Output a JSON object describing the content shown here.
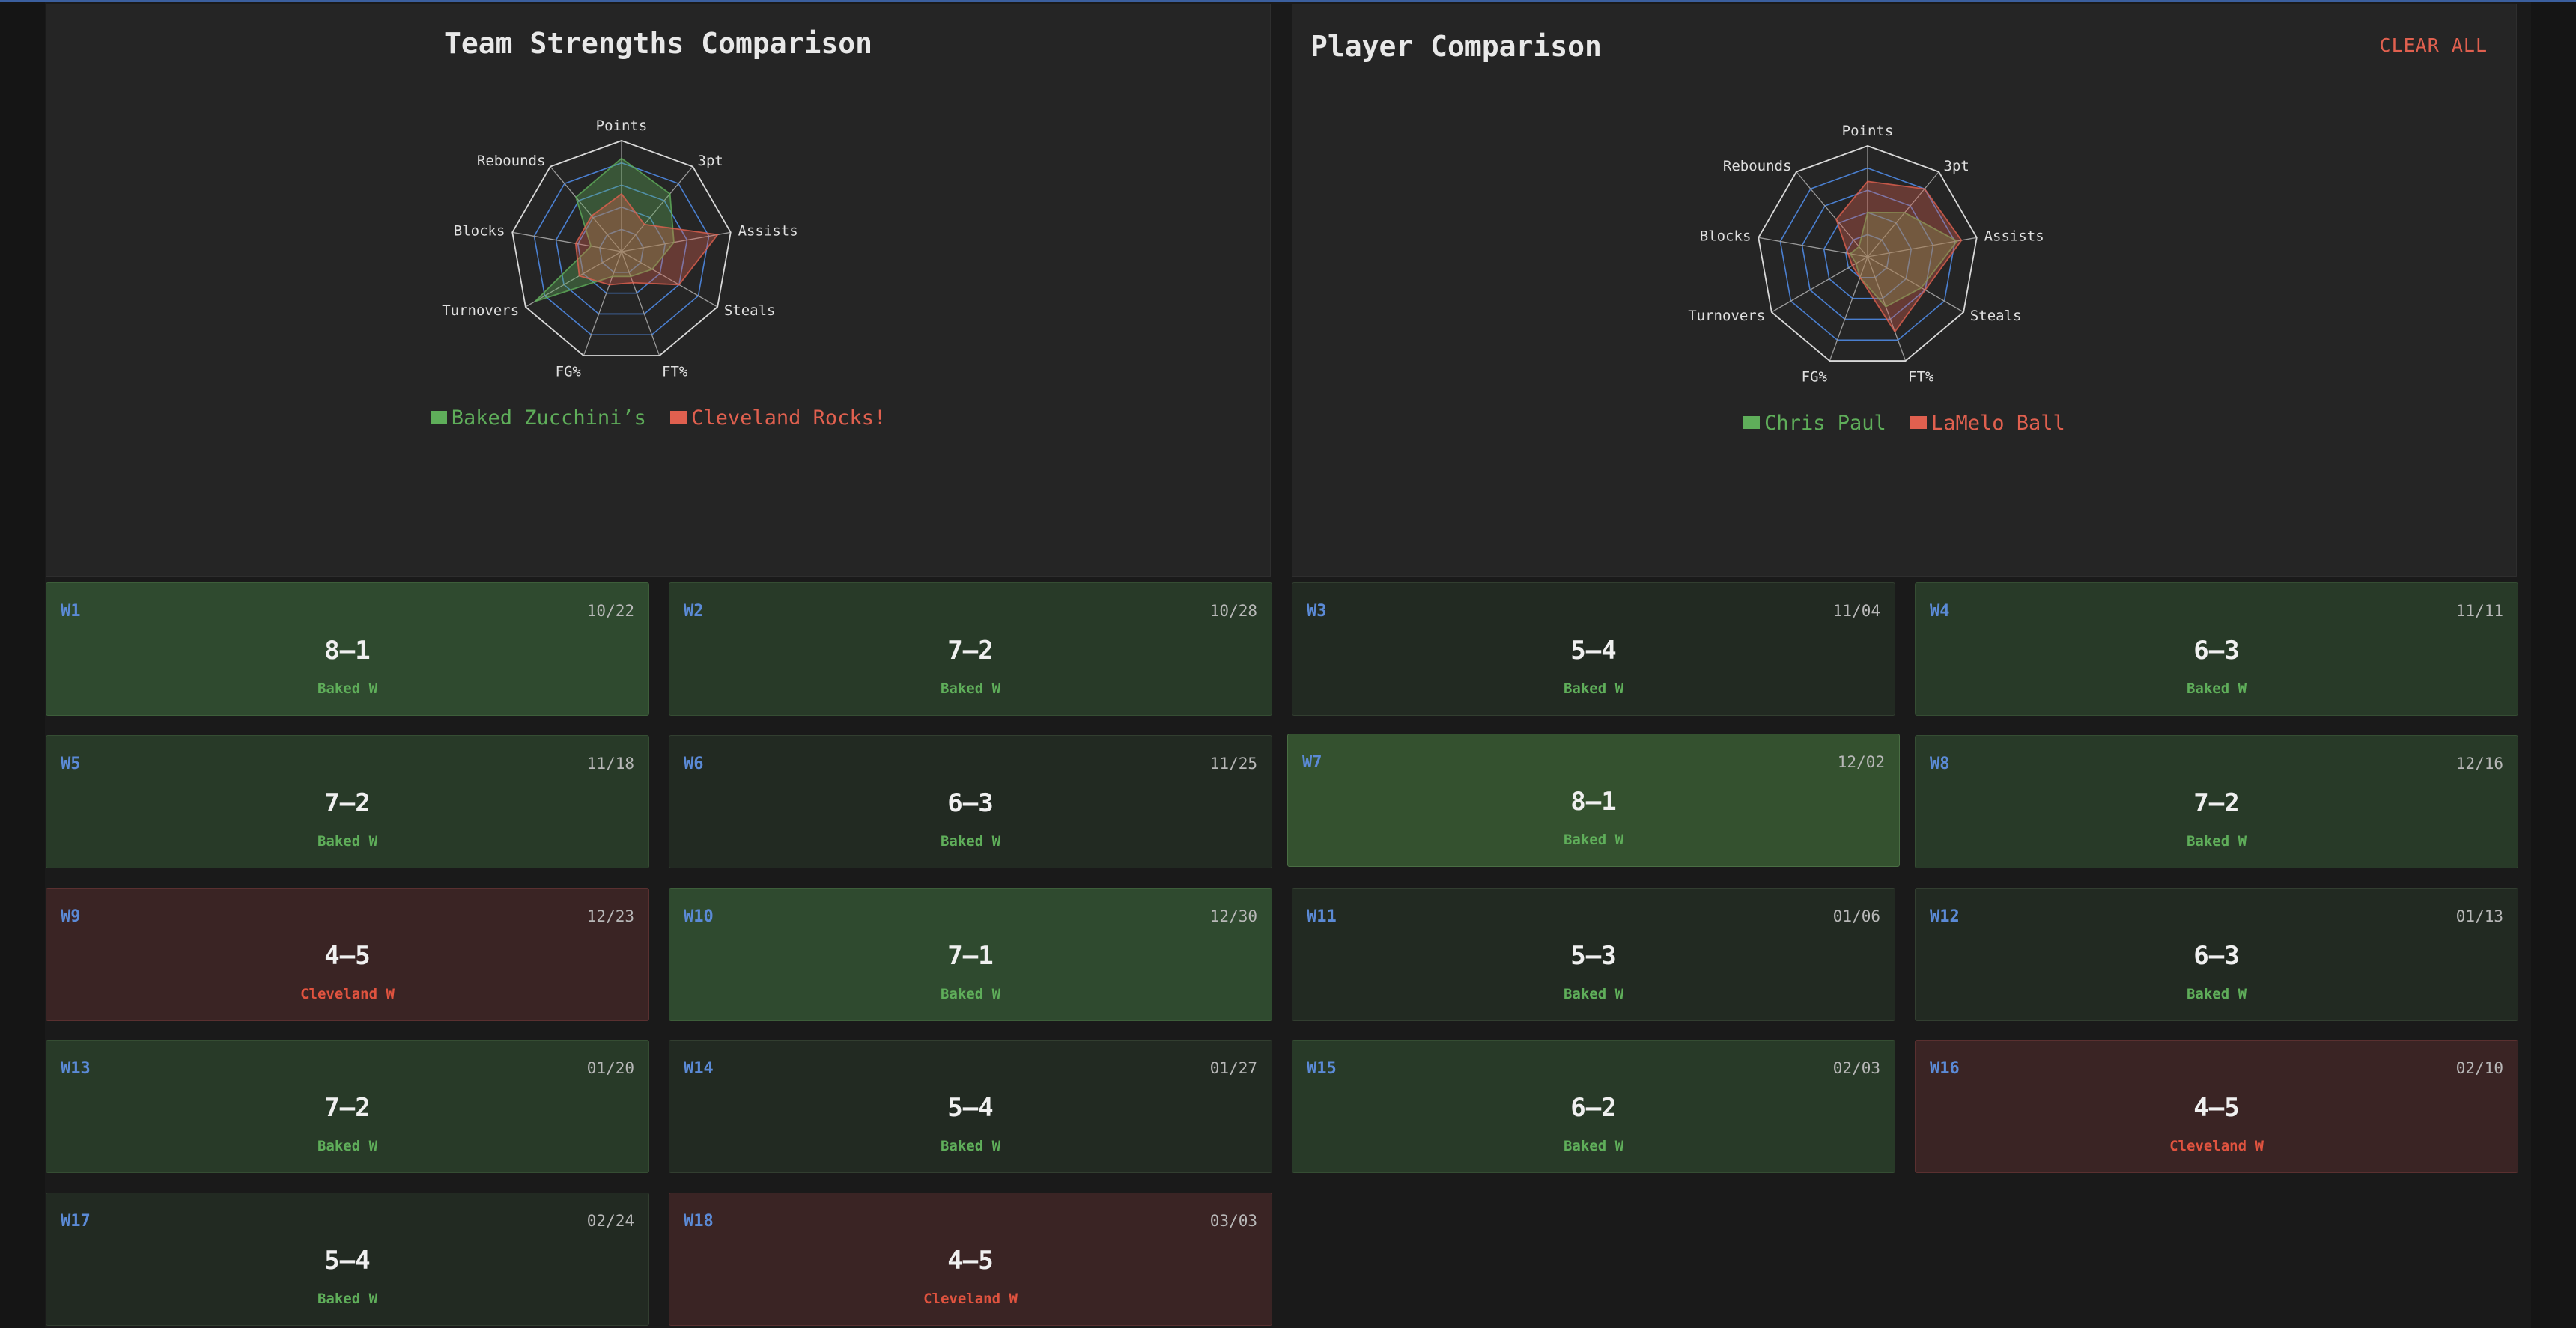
{
  "colors": {
    "green": "#5fae5a",
    "red": "#e0604f",
    "grid": "#4a7fd0",
    "accent": "#5b8ad6"
  },
  "categories": [
    "Points",
    "3pt",
    "Assists",
    "Steals",
    "FT%",
    "FG%",
    "Turnovers",
    "Blocks",
    "Rebounds"
  ],
  "team_panel": {
    "title": "Team Strengths Comparison",
    "legend": [
      "Baked Zucchini’s",
      "Cleveland Rocks!"
    ]
  },
  "player_panel": {
    "title": "Player Comparison",
    "clear_label": "CLEAR ALL",
    "legend": [
      "Chris Paul",
      "LaMelo Ball"
    ]
  },
  "chart_data": [
    {
      "type": "radar",
      "title": "Team Strengths Comparison",
      "categories": [
        "Points",
        "3pt",
        "Assists",
        "Steals",
        "FT%",
        "FG%",
        "Turnovers",
        "Blocks",
        "Rebounds"
      ],
      "scale": [
        0,
        5
      ],
      "series": [
        {
          "name": "Baked Zucchini’s",
          "color": "#5fae5a",
          "values": [
            4.2,
            3.4,
            2.4,
            1.6,
            1.2,
            1.2,
            4.5,
            1.4,
            3.2
          ]
        },
        {
          "name": "Cleveland Rocks!",
          "color": "#e0604f",
          "values": [
            2.6,
            1.6,
            4.4,
            3.0,
            1.5,
            1.6,
            2.2,
            2.1,
            2.1
          ]
        }
      ]
    },
    {
      "type": "radar",
      "title": "Player Comparison",
      "categories": [
        "Points",
        "3pt",
        "Assists",
        "Steals",
        "FT%",
        "FG%",
        "Turnovers",
        "Blocks",
        "Rebounds"
      ],
      "scale": [
        0,
        5
      ],
      "series": [
        {
          "name": "Chris Paul",
          "color": "#5fae5a",
          "values": [
            2.0,
            2.6,
            4.1,
            2.8,
            2.4,
            1.0,
            0.6,
            0.8,
            0.6
          ]
        },
        {
          "name": "LaMelo Ball",
          "color": "#e0604f",
          "values": [
            3.4,
            4.0,
            4.3,
            3.0,
            3.6,
            1.0,
            0.8,
            0.9,
            2.2
          ]
        }
      ]
    }
  ],
  "weeks": [
    {
      "week": "W1",
      "date": "10/22",
      "score": "8–1",
      "result": "Baked W",
      "outcome": "win",
      "tone": "w-strong"
    },
    {
      "week": "W2",
      "date": "10/28",
      "score": "7–2",
      "result": "Baked W",
      "outcome": "win",
      "tone": "w-mid"
    },
    {
      "week": "W3",
      "date": "11/04",
      "score": "5–4",
      "result": "Baked W",
      "outcome": "win",
      "tone": "w-weak"
    },
    {
      "week": "W4",
      "date": "11/11",
      "score": "6–3",
      "result": "Baked W",
      "outcome": "win",
      "tone": "w-mid"
    },
    {
      "week": "W5",
      "date": "11/18",
      "score": "7–2",
      "result": "Baked W",
      "outcome": "win",
      "tone": "w-mid"
    },
    {
      "week": "W6",
      "date": "11/25",
      "score": "6–3",
      "result": "Baked W",
      "outcome": "win",
      "tone": "w-weak"
    },
    {
      "week": "W7",
      "date": "12/02",
      "score": "8–1",
      "result": "Baked W",
      "outcome": "win",
      "tone": "highlight"
    },
    {
      "week": "W8",
      "date": "12/16",
      "score": "7–2",
      "result": "Baked W",
      "outcome": "win",
      "tone": "w-mid"
    },
    {
      "week": "W9",
      "date": "12/23",
      "score": "4–5",
      "result": "Cleveland W",
      "outcome": "lose",
      "tone": "loss"
    },
    {
      "week": "W10",
      "date": "12/30",
      "score": "7–1",
      "result": "Baked W",
      "outcome": "win",
      "tone": "w-strong"
    },
    {
      "week": "W11",
      "date": "01/06",
      "score": "5–3",
      "result": "Baked W",
      "outcome": "win",
      "tone": "w-weak"
    },
    {
      "week": "W12",
      "date": "01/13",
      "score": "6–3",
      "result": "Baked W",
      "outcome": "win",
      "tone": "w-weak"
    },
    {
      "week": "W13",
      "date": "01/20",
      "score": "7–2",
      "result": "Baked W",
      "outcome": "win",
      "tone": "w-mid"
    },
    {
      "week": "W14",
      "date": "01/27",
      "score": "5–4",
      "result": "Baked W",
      "outcome": "win",
      "tone": "w-weak"
    },
    {
      "week": "W15",
      "date": "02/03",
      "score": "6–2",
      "result": "Baked W",
      "outcome": "win",
      "tone": "w-mid"
    },
    {
      "week": "W16",
      "date": "02/10",
      "score": "4–5",
      "result": "Cleveland W",
      "outcome": "lose",
      "tone": "loss"
    },
    {
      "week": "W17",
      "date": "02/24",
      "score": "5–4",
      "result": "Baked W",
      "outcome": "win",
      "tone": "w-weak"
    },
    {
      "week": "W18",
      "date": "03/03",
      "score": "4–5",
      "result": "Cleveland W",
      "outcome": "lose",
      "tone": "loss"
    }
  ]
}
